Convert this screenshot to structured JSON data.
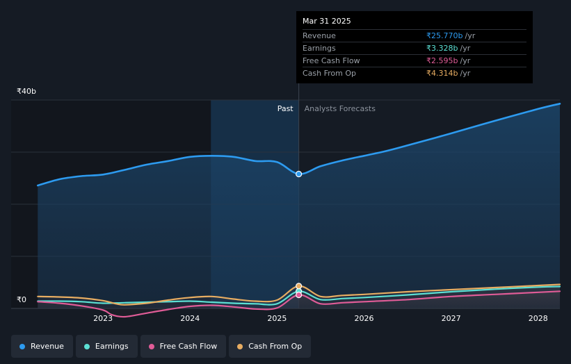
{
  "tooltip": {
    "date": "Mar 31 2025",
    "unit": "/yr",
    "rows": [
      {
        "label": "Revenue",
        "value": "₹25.770b",
        "color": "#2d9bf0"
      },
      {
        "label": "Earnings",
        "value": "₹3.328b",
        "color": "#5ce0d4"
      },
      {
        "label": "Free Cash Flow",
        "value": "₹2.595b",
        "color": "#e05c97"
      },
      {
        "label": "Cash From Op",
        "value": "₹4.314b",
        "color": "#e8ad62"
      }
    ]
  },
  "legend": [
    {
      "label": "Revenue",
      "color": "#2d9bf0"
    },
    {
      "label": "Earnings",
      "color": "#5ce0d4"
    },
    {
      "label": "Free Cash Flow",
      "color": "#e05c97"
    },
    {
      "label": "Cash From Op",
      "color": "#e8ad62"
    }
  ],
  "chart_data": {
    "type": "line",
    "y_unit": "₹b",
    "ylim": [
      0,
      40
    ],
    "y_tick_labels": [
      {
        "value": 40,
        "label": "₹40b"
      },
      {
        "value": 0,
        "label": "₹0"
      }
    ],
    "xlim": [
      2022.2,
      2028.25
    ],
    "x_ticks": [
      {
        "value": 2023,
        "label": "2023"
      },
      {
        "value": 2024,
        "label": "2024"
      },
      {
        "value": 2025,
        "label": "2025"
      },
      {
        "value": 2026,
        "label": "2026"
      },
      {
        "value": 2027,
        "label": "2027"
      },
      {
        "value": 2028,
        "label": "2028"
      }
    ],
    "regions": {
      "past_label": "Past",
      "forecast_label": "Analysts Forecasts",
      "highlight_start": 2024.24,
      "divider": 2025.25
    },
    "highlight_point_x": 2025.25,
    "series": [
      {
        "name": "Revenue",
        "color": "#2d9bf0",
        "points": [
          [
            2022.25,
            23.6
          ],
          [
            2022.5,
            24.8
          ],
          [
            2022.75,
            25.4
          ],
          [
            2023,
            25.7
          ],
          [
            2023.25,
            26.6
          ],
          [
            2023.5,
            27.6
          ],
          [
            2023.75,
            28.3
          ],
          [
            2024,
            29.1
          ],
          [
            2024.25,
            29.3
          ],
          [
            2024.5,
            29.1
          ],
          [
            2024.75,
            28.3
          ],
          [
            2025,
            28.1
          ],
          [
            2025.25,
            25.8
          ],
          [
            2025.5,
            27.3
          ],
          [
            2025.75,
            28.4
          ],
          [
            2026,
            29.3
          ],
          [
            2026.25,
            30.2
          ],
          [
            2026.5,
            31.3
          ],
          [
            2027,
            33.6
          ],
          [
            2027.5,
            36.0
          ],
          [
            2028,
            38.3
          ],
          [
            2028.25,
            39.3
          ]
        ]
      },
      {
        "name": "Earnings",
        "color": "#5ce0d4",
        "points": [
          [
            2022.25,
            1.4
          ],
          [
            2022.5,
            1.4
          ],
          [
            2022.75,
            1.3
          ],
          [
            2023,
            1.0
          ],
          [
            2023.25,
            1.1
          ],
          [
            2023.5,
            1.2
          ],
          [
            2023.75,
            1.3
          ],
          [
            2024,
            1.4
          ],
          [
            2024.25,
            1.2
          ],
          [
            2024.5,
            1.0
          ],
          [
            2024.75,
            0.9
          ],
          [
            2025,
            0.9
          ],
          [
            2025.25,
            3.3
          ],
          [
            2025.5,
            1.7
          ],
          [
            2025.75,
            1.9
          ],
          [
            2026,
            2.1
          ],
          [
            2026.5,
            2.6
          ],
          [
            2027,
            3.2
          ],
          [
            2027.5,
            3.7
          ],
          [
            2028,
            4.1
          ],
          [
            2028.25,
            4.2
          ]
        ]
      },
      {
        "name": "Free Cash Flow",
        "color": "#e05c97",
        "points": [
          [
            2022.25,
            1.3
          ],
          [
            2022.5,
            1.0
          ],
          [
            2022.75,
            0.5
          ],
          [
            2023,
            -0.3
          ],
          [
            2023.1,
            -1.2
          ],
          [
            2023.25,
            -1.6
          ],
          [
            2023.5,
            -0.9
          ],
          [
            2023.75,
            -0.2
          ],
          [
            2024,
            0.4
          ],
          [
            2024.25,
            0.6
          ],
          [
            2024.5,
            0.3
          ],
          [
            2024.75,
            -0.1
          ],
          [
            2025,
            0.1
          ],
          [
            2025.25,
            2.6
          ],
          [
            2025.5,
            0.9
          ],
          [
            2025.75,
            1.1
          ],
          [
            2026,
            1.3
          ],
          [
            2026.5,
            1.7
          ],
          [
            2027,
            2.3
          ],
          [
            2027.5,
            2.7
          ],
          [
            2028,
            3.1
          ],
          [
            2028.25,
            3.3
          ]
        ]
      },
      {
        "name": "Cash From Op",
        "color": "#e8ad62",
        "points": [
          [
            2022.25,
            2.3
          ],
          [
            2022.5,
            2.2
          ],
          [
            2022.75,
            2.0
          ],
          [
            2023,
            1.5
          ],
          [
            2023.15,
            0.9
          ],
          [
            2023.25,
            0.7
          ],
          [
            2023.5,
            1.0
          ],
          [
            2023.75,
            1.6
          ],
          [
            2024,
            2.1
          ],
          [
            2024.25,
            2.3
          ],
          [
            2024.5,
            1.8
          ],
          [
            2024.75,
            1.4
          ],
          [
            2025,
            1.6
          ],
          [
            2025.25,
            4.3
          ],
          [
            2025.5,
            2.3
          ],
          [
            2025.75,
            2.5
          ],
          [
            2026,
            2.7
          ],
          [
            2026.5,
            3.2
          ],
          [
            2027,
            3.6
          ],
          [
            2027.5,
            4.0
          ],
          [
            2028,
            4.4
          ],
          [
            2028.25,
            4.6
          ]
        ]
      }
    ]
  }
}
